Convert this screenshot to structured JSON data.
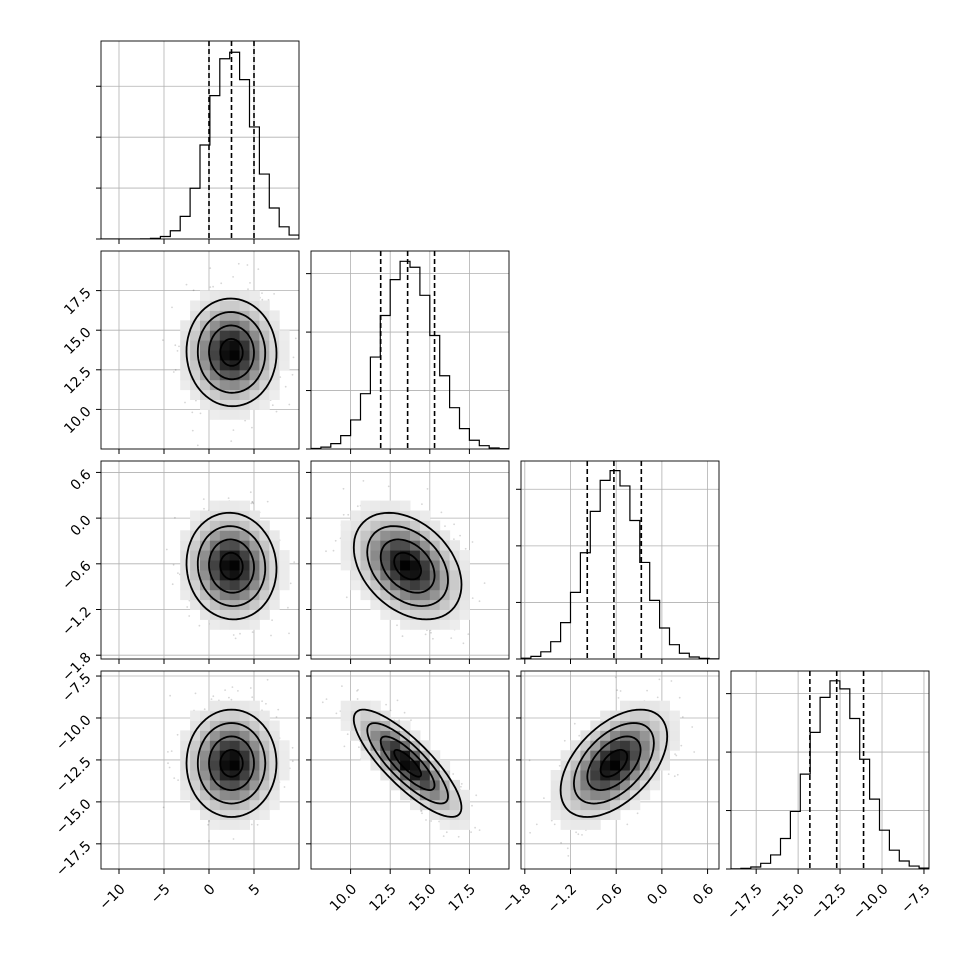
{
  "chart_data": {
    "type": "corner",
    "title": "",
    "grid": true,
    "parameters": [
      {
        "label": "",
        "range": [
          -12,
          10
        ],
        "ticks": [
          -10,
          -5,
          0,
          5
        ],
        "tick_labels": [
          "−10",
          "−5",
          "0",
          "5"
        ],
        "median": 2.5,
        "q16": 0.0,
        "q84": 5.0,
        "std": 2.5,
        "hist_ticks": [
          0,
          0.27,
          0.54,
          0.81
        ]
      },
      {
        "label": "",
        "range": [
          7.5,
          20.0
        ],
        "ticks": [
          10,
          12.5,
          15,
          17.5
        ],
        "tick_labels": [
          "10.0",
          "12.5",
          "15.0",
          "17.5"
        ],
        "median": 13.6,
        "q16": 11.9,
        "q84": 15.3,
        "std": 1.7,
        "hist_ticks": [
          0,
          0.31,
          0.62,
          0.93
        ]
      },
      {
        "label": "",
        "range": [
          -1.85,
          0.75
        ],
        "ticks": [
          -1.8,
          -1.2,
          -0.6,
          0.0,
          0.6
        ],
        "tick_labels": [
          "−1.8",
          "−1.2",
          "−0.6",
          "0.0",
          "0.6"
        ],
        "median": -0.63,
        "q16": -0.98,
        "q84": -0.27,
        "std": 0.35,
        "hist_ticks": [
          0,
          0.3,
          0.6,
          0.9
        ]
      },
      {
        "label": "",
        "range": [
          -19.0,
          -7.2
        ],
        "ticks": [
          -17.5,
          -15.0,
          -12.5,
          -10.0,
          -7.5
        ],
        "tick_labels": [
          "−17.5",
          "−15.0",
          "−12.5",
          "−10.0",
          "−7.5"
        ],
        "median": -12.7,
        "q16": -14.3,
        "q84": -11.1,
        "std": 1.6,
        "hist_ticks": [
          0,
          0.31,
          0.62,
          0.93
        ]
      }
    ],
    "correlations": [
      {
        "pair": [
          0,
          1
        ],
        "rho": -0.02
      },
      {
        "pair": [
          0,
          2
        ],
        "rho": -0.05
      },
      {
        "pair": [
          1,
          2
        ],
        "rho": -0.35
      },
      {
        "pair": [
          0,
          3
        ],
        "rho": 0.0
      },
      {
        "pair": [
          1,
          3
        ],
        "rho": -0.82
      },
      {
        "pair": [
          2,
          3
        ],
        "rho": 0.5
      }
    ],
    "contour_levels_sigma": [
      0.5,
      1.0,
      1.5,
      2.0
    ],
    "quantile_line_style": "dashed"
  }
}
